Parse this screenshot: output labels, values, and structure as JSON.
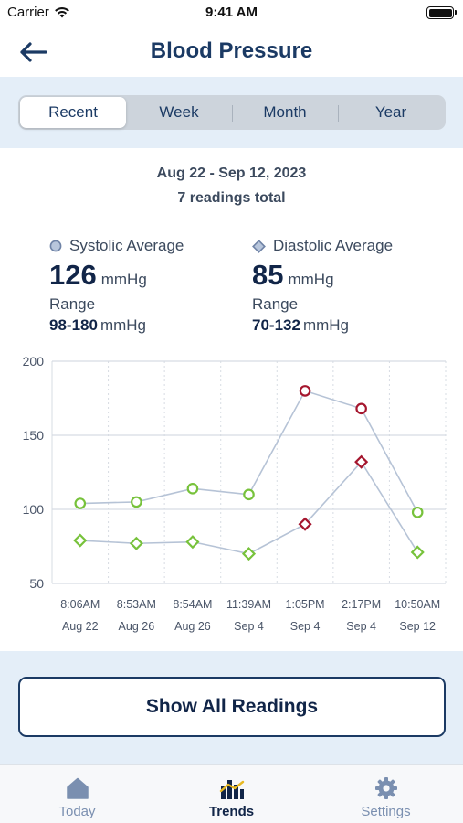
{
  "status_bar": {
    "carrier": "Carrier",
    "time": "9:41 AM"
  },
  "nav": {
    "title": "Blood Pressure",
    "back_icon": "arrow-left-icon"
  },
  "segments": [
    {
      "label": "Recent",
      "active": true
    },
    {
      "label": "Week",
      "active": false
    },
    {
      "label": "Month",
      "active": false
    },
    {
      "label": "Year",
      "active": false
    }
  ],
  "summary": {
    "date_range": "Aug 22 - Sep 12, 2023",
    "readings_total": "7 readings total"
  },
  "systolic": {
    "label": "Systolic Average",
    "value": "126",
    "unit": "mmHg",
    "range_label": "Range",
    "range": "98-180",
    "range_unit": "mmHg"
  },
  "diastolic": {
    "label": "Diastolic Average",
    "value": "85",
    "unit": "mmHg",
    "range_label": "Range",
    "range": "70-132",
    "range_unit": "mmHg"
  },
  "chart_data": {
    "type": "line",
    "categories": [
      [
        "8:06AM",
        "Aug 22"
      ],
      [
        "8:53AM",
        "Aug 26"
      ],
      [
        "8:54AM",
        "Aug 26"
      ],
      [
        "11:39AM",
        "Sep 4"
      ],
      [
        "1:05PM",
        "Sep 4"
      ],
      [
        "2:17PM",
        "Sep 4"
      ],
      [
        "10:50AM",
        "Sep 12"
      ]
    ],
    "series": [
      {
        "name": "Systolic Average",
        "marker": "circle",
        "values": [
          104,
          105,
          114,
          110,
          180,
          168,
          98
        ],
        "status": [
          "normal",
          "normal",
          "normal",
          "normal",
          "high",
          "high",
          "normal"
        ]
      },
      {
        "name": "Diastolic Average",
        "marker": "diamond",
        "values": [
          79,
          77,
          78,
          70,
          90,
          132,
          71
        ],
        "status": [
          "normal",
          "normal",
          "normal",
          "normal",
          "high",
          "high",
          "normal"
        ]
      }
    ],
    "y_ticks": [
      50,
      100,
      150,
      200
    ],
    "ylim": [
      50,
      200
    ],
    "grid": true,
    "colors": {
      "normal": "#77c23b",
      "high": "#a5162e",
      "line": "#b6c3d6",
      "grid": "#d7dce3"
    }
  },
  "actions": {
    "show_all": "Show All Readings"
  },
  "tabs": [
    {
      "label": "Today",
      "icon": "home-icon",
      "active": false
    },
    {
      "label": "Trends",
      "icon": "trends-icon",
      "active": true
    },
    {
      "label": "Settings",
      "icon": "gear-icon",
      "active": false
    }
  ]
}
